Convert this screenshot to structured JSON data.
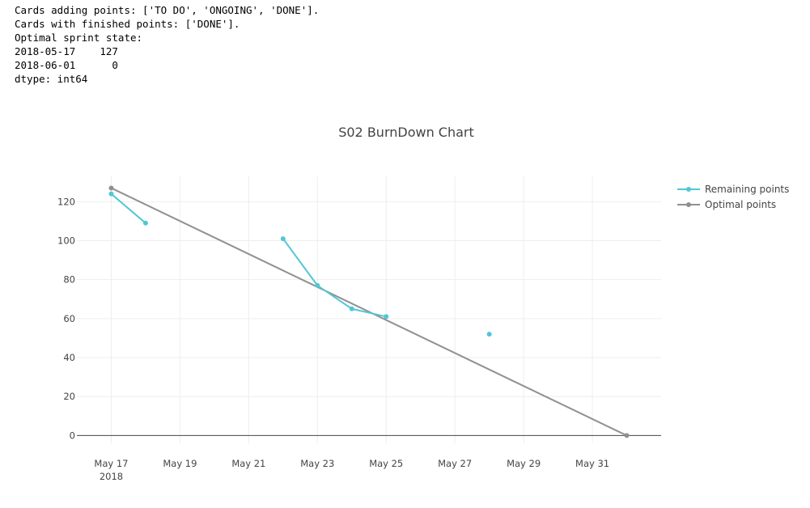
{
  "console": {
    "lines": [
      "Cards adding points: ['TO DO', 'ONGOING', 'DONE'].",
      "Cards with finished points: ['DONE'].",
      "Optimal sprint state:",
      "2018-05-17    127",
      "2018-06-01      0",
      "dtype: int64"
    ]
  },
  "chart_data": {
    "type": "line",
    "title": "S02 BurnDown Chart",
    "xlabel": "",
    "ylabel": "",
    "x_axis": {
      "type": "date",
      "range": [
        "2018-05-16",
        "2018-06-02"
      ],
      "tick_values": [
        "2018-05-17",
        "2018-05-19",
        "2018-05-21",
        "2018-05-23",
        "2018-05-25",
        "2018-05-27",
        "2018-05-29",
        "2018-05-31"
      ],
      "tick_labels": [
        "May 17",
        "May 19",
        "May 21",
        "May 23",
        "May 25",
        "May 27",
        "May 29",
        "May 31"
      ],
      "year_label": "2018"
    },
    "y_axis": {
      "range": [
        -4,
        133
      ],
      "tick_values": [
        0,
        20,
        40,
        60,
        80,
        100,
        120
      ],
      "tick_labels": [
        "0",
        "20",
        "40",
        "60",
        "80",
        "100",
        "120"
      ]
    },
    "grid": true,
    "legend_position": "top-right",
    "series": [
      {
        "name": "Remaining points",
        "color": "#4fc7d6",
        "mode": "lines+markers",
        "x": [
          "2018-05-17",
          "2018-05-18",
          "2018-05-19",
          "2018-05-20",
          "2018-05-21",
          "2018-05-22",
          "2018-05-23",
          "2018-05-24",
          "2018-05-25",
          "2018-05-26",
          "2018-05-27",
          "2018-05-28"
        ],
        "y": [
          124,
          109,
          null,
          null,
          null,
          101,
          77,
          65,
          61,
          null,
          null,
          52
        ]
      },
      {
        "name": "Optimal points",
        "color": "#909090",
        "mode": "lines+markers",
        "x": [
          "2018-05-17",
          "2018-06-01"
        ],
        "y": [
          127,
          0
        ]
      }
    ]
  }
}
